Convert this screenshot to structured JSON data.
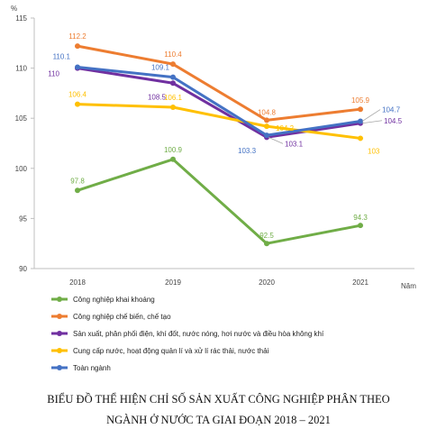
{
  "chart_data": {
    "type": "line",
    "title": "BIỂU ĐỒ THỂ HIỆN CHỈ SỐ SẢN XUẤT CÔNG NGHIỆP PHÂN THEO\nNGÀNH Ở NƯỚC TA GIAI ĐOẠN 2018 – 2021",
    "ylabel": "%",
    "xlabel": "Năm",
    "ylim": [
      90,
      115
    ],
    "yticks": [
      90,
      95,
      100,
      105,
      110,
      115
    ],
    "categories": [
      "2018",
      "2019",
      "2020",
      "2021"
    ],
    "grid": false,
    "legend": "bottom",
    "series": [
      {
        "name": "Công nghiệp khai khoáng",
        "values": [
          97.8,
          100.9,
          92.5,
          94.3
        ],
        "labels": [
          "97.8",
          "100.9",
          "92.5",
          "94.3"
        ],
        "color": "#70ad47"
      },
      {
        "name": "Công nghiệp chế biến, chế tạo",
        "values": [
          112.2,
          110.4,
          104.8,
          105.9
        ],
        "labels": [
          "112.2",
          "110.4",
          "104.8",
          "105.9"
        ],
        "color": "#ed7d31"
      },
      {
        "name": "Sản xuất, phân phối điện, khí đốt, nước nóng, hơi nước và điều hòa không khí",
        "values": [
          110,
          108.5,
          103.1,
          104.5
        ],
        "labels": [
          "110",
          "108.5",
          "103.1",
          "104.5"
        ],
        "color": "#7030a0"
      },
      {
        "name": "Cung cấp nước, hoạt động quản lí và xử lí rác thải, nước thải",
        "values": [
          106.4,
          106.1,
          104.2,
          103
        ],
        "labels": [
          "106.4",
          "106.1",
          "104.2",
          "103"
        ],
        "color": "#ffc000"
      },
      {
        "name": "Toàn ngành",
        "values": [
          110.1,
          109.1,
          103.3,
          104.7
        ],
        "labels": [
          "110.1",
          "109.1",
          "103.3",
          "104.7"
        ],
        "color": "#4472c4"
      }
    ]
  }
}
